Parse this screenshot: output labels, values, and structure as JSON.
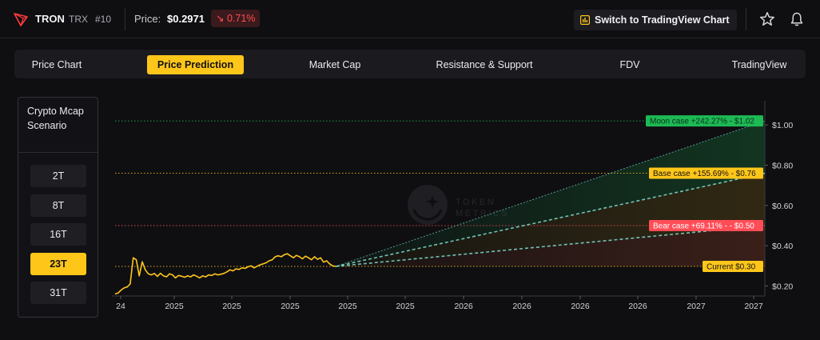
{
  "header": {
    "coin_name": "TRON",
    "coin_symbol": "TRX",
    "rank": "#10",
    "price_label": "Price:",
    "price_value": "$0.2971",
    "price_change": "↘ 0.71%",
    "switch_label": "Switch to TradingView Chart"
  },
  "tabs": [
    {
      "label": "Price Chart",
      "active": false
    },
    {
      "label": "Price Prediction",
      "active": true
    },
    {
      "label": "Market Cap",
      "active": false
    },
    {
      "label": "Resistance & Support",
      "active": false
    },
    {
      "label": "FDV",
      "active": false
    },
    {
      "label": "TradingView",
      "active": false
    }
  ],
  "scenario": {
    "title": "Crypto Mcap Scenario",
    "options": [
      {
        "label": "2T",
        "active": false
      },
      {
        "label": "8T",
        "active": false
      },
      {
        "label": "16T",
        "active": false
      },
      {
        "label": "23T",
        "active": true
      },
      {
        "label": "31T",
        "active": false
      }
    ]
  },
  "watermark": {
    "line1": "TOKEN",
    "line2": "METRICS"
  },
  "colors": {
    "accent": "#ffc61a",
    "moon": "#1db954",
    "base": "#ffc61a",
    "bear": "#ff4d57",
    "current": "#ffc61a",
    "negative": "#ff4d4f"
  },
  "chart_data": {
    "type": "line",
    "x_tick_labels": [
      "24",
      "2025",
      "2025",
      "2025",
      "2025",
      "2025",
      "2026",
      "2026",
      "2026",
      "2026",
      "2027",
      "2027",
      "2027"
    ],
    "y_ticks": [
      0.2,
      0.4,
      0.6,
      0.8,
      1.0
    ],
    "y_tick_labels": [
      "$0.20",
      "$0.40",
      "$0.60",
      "$0.80",
      "$1.00"
    ],
    "ylim": [
      0.15,
      1.12
    ],
    "history": [
      0.16,
      0.165,
      0.18,
      0.19,
      0.195,
      0.21,
      0.34,
      0.33,
      0.25,
      0.32,
      0.28,
      0.26,
      0.255,
      0.262,
      0.247,
      0.263,
      0.25,
      0.245,
      0.26,
      0.255,
      0.24,
      0.252,
      0.248,
      0.243,
      0.25,
      0.245,
      0.255,
      0.248,
      0.24,
      0.25,
      0.245,
      0.255,
      0.252,
      0.26,
      0.255,
      0.258,
      0.262,
      0.27,
      0.28,
      0.275,
      0.285,
      0.282,
      0.29,
      0.287,
      0.295,
      0.3,
      0.29,
      0.298,
      0.305,
      0.31,
      0.315,
      0.325,
      0.33,
      0.345,
      0.35,
      0.345,
      0.355,
      0.36,
      0.35,
      0.34,
      0.352,
      0.345,
      0.335,
      0.348,
      0.34,
      0.33,
      0.345,
      0.332,
      0.34,
      0.318,
      0.325,
      0.31,
      0.3,
      0.297
    ],
    "current": {
      "value": 0.2971,
      "label": "Current $0.30"
    },
    "scenarios": [
      {
        "name": "Moon case",
        "label": "Moon case +242.27% - $1.02",
        "value": 1.02
      },
      {
        "name": "Base case",
        "label": "Base case +155.69% - $0.76",
        "value": 0.76
      },
      {
        "name": "Bear case",
        "label": "Bear case +69.11% - - $0.50",
        "value": 0.5
      }
    ]
  }
}
